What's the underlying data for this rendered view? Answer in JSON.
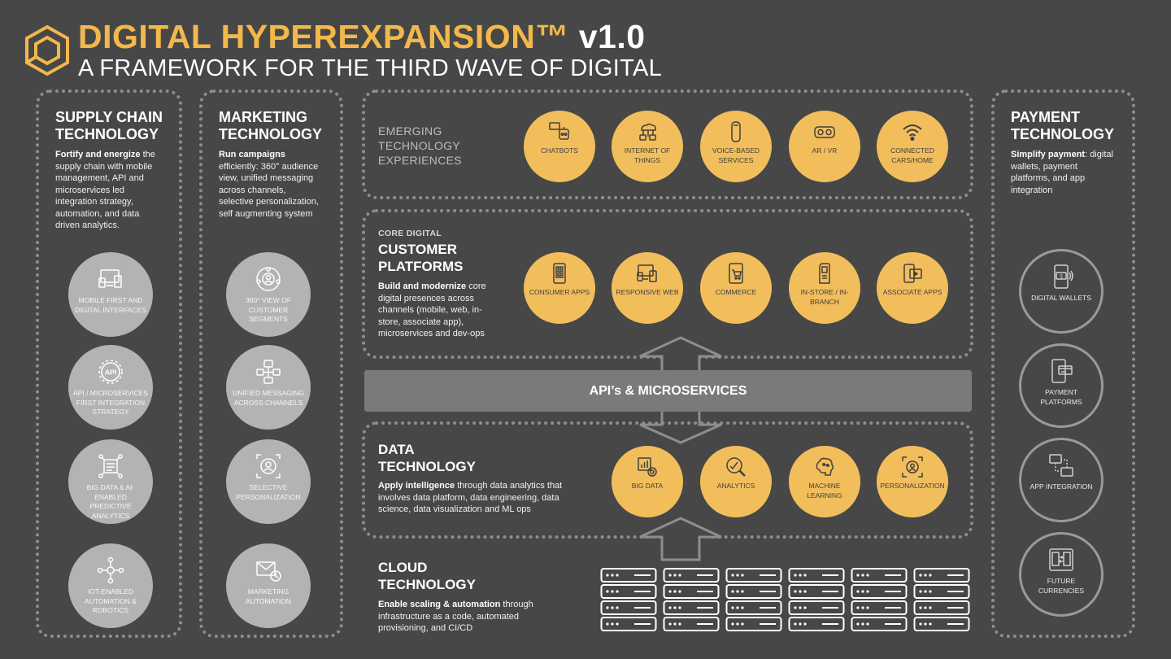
{
  "header": {
    "title": "DIGITAL HYPEREXPANSION™",
    "version": "v1.0",
    "subtitle": "A FRAMEWORK FOR THE THIRD WAVE OF DIGITAL"
  },
  "supply_chain": {
    "title_line1": "SUPPLY CHAIN",
    "title_line2": "TECHNOLOGY",
    "desc_bold": "Fortify and energize",
    "desc_rest": "the supply chain with mobile management,  API and microservices led integration strategy, automation, and data driven analytics.",
    "items": [
      {
        "label": "MOBILE FIRST AND DIGITAL INTERFACES",
        "icon": "devices-icon"
      },
      {
        "label": "API / MICROSERVICES FIRST INTEGRATION STRATEGY",
        "icon": "api-icon"
      },
      {
        "label": "BIG DATA & AI-ENABLED PREDICTIVE ANALYTICS",
        "icon": "big-data-icon"
      },
      {
        "label": "IOT-ENABLED AUTOMATION & ROBOTICS",
        "icon": "iot-icon"
      }
    ]
  },
  "marketing": {
    "title_line1": "MARKETING",
    "title_line2": "TECHNOLOGY",
    "desc_bold": "Run campaigns",
    "desc_rest": "efficiently: 360° audience view, unified messaging across channels, selective personalization, self augmenting system",
    "items": [
      {
        "label": "360° VIEW OF CUSTOMER SEGMENTS",
        "icon": "customer-view-icon"
      },
      {
        "label": "UNIFIED MESSAGING ACROSS CHANNELS",
        "icon": "messaging-icon"
      },
      {
        "label": "SELECTIVE PERSONALIZATION",
        "icon": "target-person-icon"
      },
      {
        "label": "MARKETING AUTOMATION",
        "icon": "email-automation-icon"
      }
    ]
  },
  "emerging": {
    "title": "EMERGING TECHNOLOGY EXPERIENCES",
    "line1": "EMERGING",
    "line2": "TECHNOLOGY",
    "line3": "EXPERIENCES",
    "items": [
      {
        "label": "CHATBOTS",
        "icon": "chatbot-icon"
      },
      {
        "label": "INTERNET OF THINGS",
        "icon": "iot-cloud-icon"
      },
      {
        "label": "VOICE-BASED SERVICES",
        "icon": "smart-speaker-icon"
      },
      {
        "label": "AR / VR",
        "icon": "vr-headset-icon"
      },
      {
        "label": "CONNECTED CARS/HOME",
        "icon": "wifi-icon"
      }
    ]
  },
  "core_digital": {
    "small_title": "CORE DIGITAL",
    "title_line1": "CUSTOMER",
    "title_line2": "PLATFORMS",
    "desc_bold": "Build and modernize",
    "desc_rest": "core digital presences across channels (mobile, web, in-store, associate app), microservices and dev-ops",
    "items": [
      {
        "label": "CONSUMER APPS",
        "icon": "phone-apps-icon"
      },
      {
        "label": "RESPONSIVE WEB",
        "icon": "responsive-devices-icon"
      },
      {
        "label": "COMMERCE",
        "icon": "shopping-cart-icon"
      },
      {
        "label": "IN-STORE / IN-BRANCH",
        "icon": "kiosk-icon"
      },
      {
        "label": "ASSOCIATE APPS",
        "icon": "associate-app-icon"
      }
    ]
  },
  "api": {
    "label": "API’s & MICROSERVICES"
  },
  "data_tech": {
    "title_line1": "DATA",
    "title_line2": "TECHNOLOGY",
    "desc_bold": "Apply intelligence",
    "desc_rest": "through data analytics that involves data platform, data engineering, data science, data visualization and ML ops",
    "items": [
      {
        "label": "BIG DATA",
        "icon": "big-data-chart-icon"
      },
      {
        "label": "ANALYTICS",
        "icon": "analytics-icon"
      },
      {
        "label": "MACHINE LEARNING",
        "icon": "brain-icon"
      },
      {
        "label": "PERSONALIZATION",
        "icon": "personalization-icon"
      }
    ]
  },
  "cloud": {
    "title_line1": "CLOUD",
    "title_line2": "TECHNOLOGY",
    "desc_bold": "Enable scaling & automation",
    "desc_rest": "through infrastructure as a code, automated provisioning, and CI/CD",
    "server_count": 6
  },
  "payment": {
    "title_line1": "PAYMENT",
    "title_line2": "TECHNOLOGY",
    "desc_bold": "Simplify payment",
    "desc_rest": ": digital wallets, payment platforms, and app integration",
    "items": [
      {
        "label": "DIGITAL WALLETS",
        "icon": "wallet-phone-icon"
      },
      {
        "label": "PAYMENT PLATFORMS",
        "icon": "payment-phone-icon"
      },
      {
        "label": "APP INTEGRATION",
        "icon": "app-integration-icon"
      },
      {
        "label": "FUTURE CURRENCIES",
        "icon": "currency-exchange-icon"
      }
    ]
  },
  "colors": {
    "background": "#474747",
    "accent_orange": "#f2b84b",
    "circle_orange": "#f2be5c",
    "circle_grey": "#b3b3b3",
    "dotted_border": "#8e8e8e",
    "api_bar": "#7a7a7a"
  }
}
